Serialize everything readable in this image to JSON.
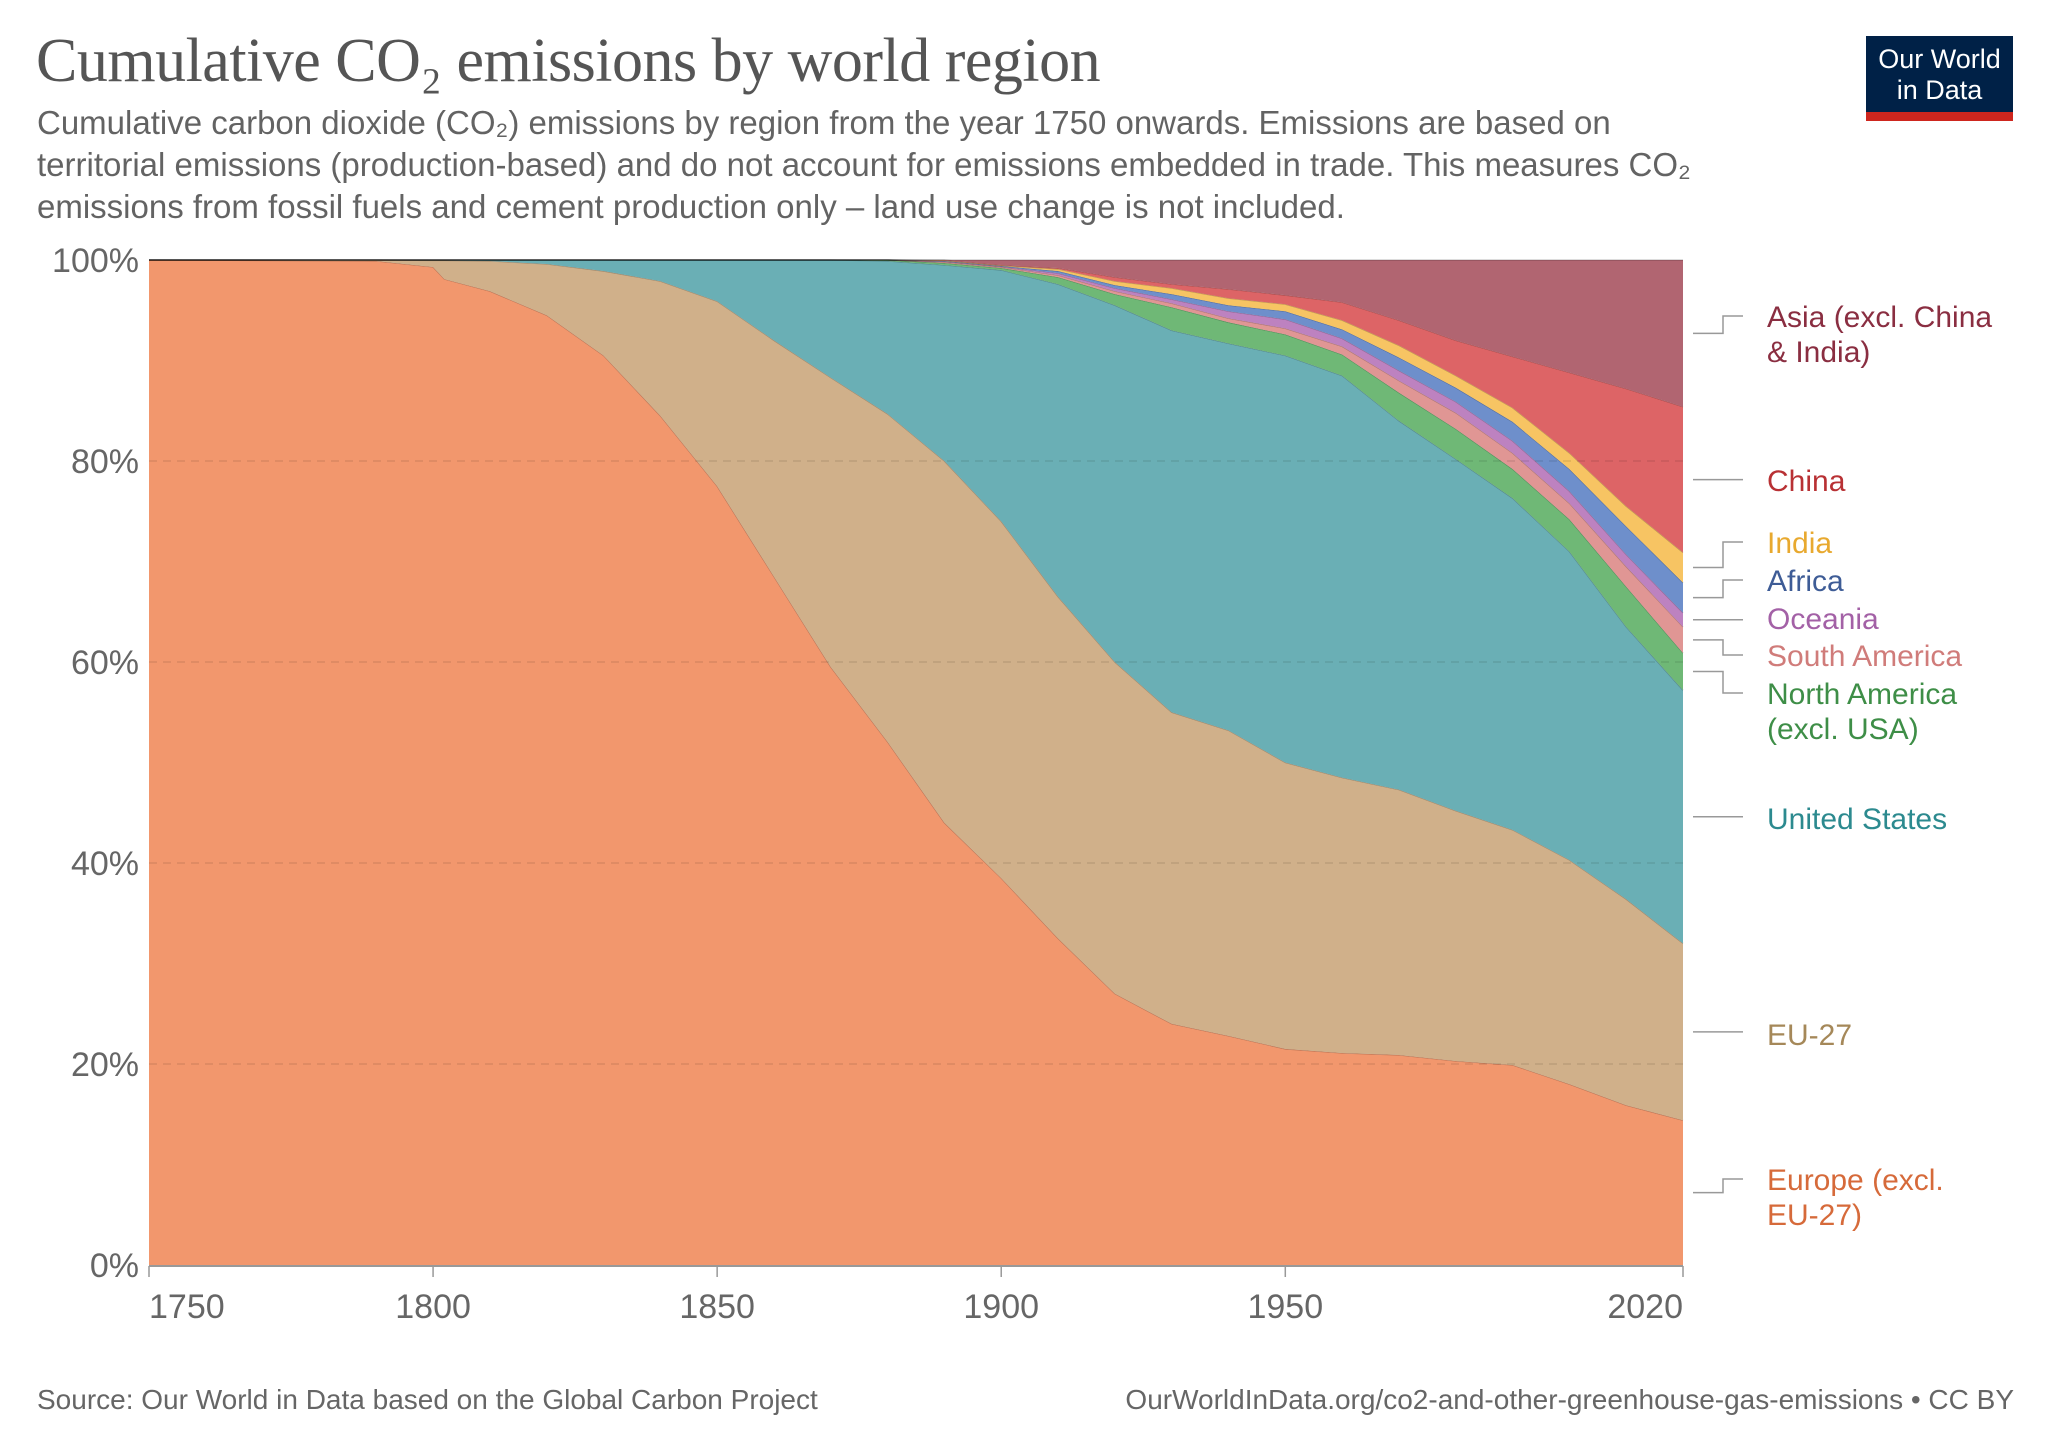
{
  "header": {
    "title": "Cumulative CO₂ emissions by world region",
    "subtitle_lines": [
      "Cumulative carbon dioxide (CO₂) emissions by region from the year 1750 onwards. Emissions are based on",
      "territorial emissions (production-based) and do not account for emissions embedded in trade. This measures CO₂",
      "emissions from fossil fuels and cement production only – land use change is not included."
    ],
    "logo_line1": "Our World",
    "logo_line2": "in Data",
    "logo_bg": "#002147",
    "logo_accent": "#ce261e"
  },
  "footer": {
    "source": "Source: Our World in Data based on the Global Carbon Project",
    "url": "OurWorldInData.org/co2-and-other-greenhouse-gas-emissions • CC BY"
  },
  "chart_data": {
    "type": "area",
    "stacked": true,
    "relative": true,
    "title": "Cumulative CO₂ emissions by world region",
    "xlabel": "",
    "ylabel": "",
    "xlim": [
      1750,
      2020
    ],
    "ylim": [
      0,
      100
    ],
    "grid": "horizontal-dashed",
    "legend_placement": "right (inline labels)",
    "x_ticks": [
      1750,
      1800,
      1850,
      1900,
      1950,
      2020
    ],
    "x_tick_labels": [
      "1750",
      "1800",
      "1850",
      "1900",
      "1950",
      "2020"
    ],
    "y_ticks": [
      0,
      20,
      40,
      60,
      80,
      100
    ],
    "y_tick_labels": [
      "0%",
      "20%",
      "40%",
      "60%",
      "80%",
      "100%"
    ],
    "x": [
      1750,
      1790,
      1800,
      1802,
      1810,
      1820,
      1830,
      1840,
      1850,
      1860,
      1870,
      1880,
      1890,
      1900,
      1910,
      1920,
      1930,
      1940,
      1950,
      1960,
      1970,
      1980,
      1990,
      2000,
      2010,
      2020
    ],
    "series": [
      {
        "name": "Europe (excl. EU-27)",
        "label_lines": [
          "Europe (excl.",
          "EU-27)"
        ],
        "color": "#f2976d",
        "text_color": "#d66a3a",
        "values": [
          100,
          99.9,
          99.3,
          98.1,
          96.9,
          94.5,
          90.5,
          84.5,
          77.5,
          68.5,
          59.5,
          52.0,
          44.0,
          38.5,
          32.5,
          27.0,
          24.0,
          22.8,
          21.5,
          21.1,
          20.9,
          20.3,
          19.9,
          18.0,
          15.9,
          14.4
        ]
      },
      {
        "name": "EU-27",
        "label_lines": [
          "EU-27"
        ],
        "color": "#d0b08a",
        "text_color": "#a58859",
        "values": [
          0,
          0.1,
          0.65,
          1.85,
          3.0,
          5.1,
          8.4,
          13.4,
          18.4,
          23.5,
          28.8,
          32.6,
          36.0,
          35.5,
          34.0,
          33.0,
          31.0,
          30.4,
          28.5,
          27.4,
          26.4,
          24.9,
          23.4,
          22.3,
          20.5,
          17.6
        ]
      },
      {
        "name": "United States",
        "label_lines": [
          "United States"
        ],
        "color": "#6aafb5",
        "text_color": "#2c8a8f",
        "values": [
          0,
          0,
          0.05,
          0.05,
          0.1,
          0.4,
          1.1,
          2.1,
          4.1,
          8.0,
          11.7,
          15.2,
          19.5,
          25.0,
          31.1,
          35.5,
          38.0,
          38.5,
          40.5,
          40.0,
          36.7,
          35.0,
          33.0,
          30.7,
          27.1,
          25.2
        ]
      },
      {
        "name": "North America (excl. USA)",
        "label_lines": [
          "North America",
          "(excl. USA)"
        ],
        "color": "#6fb876",
        "text_color": "#3e8e47",
        "values": [
          0,
          0,
          0,
          0,
          0,
          0,
          0,
          0,
          0,
          0,
          0,
          0.1,
          0.2,
          0.2,
          0.7,
          1.1,
          2.3,
          2.1,
          2.1,
          2.1,
          2.8,
          3.0,
          2.9,
          3.2,
          4.0,
          3.7
        ]
      },
      {
        "name": "South America",
        "label_lines": [
          "South America"
        ],
        "color": "#e09694",
        "text_color": "#d07c7a",
        "values": [
          0,
          0,
          0,
          0,
          0,
          0,
          0,
          0,
          0,
          0,
          0,
          0,
          0.1,
          0.1,
          0.2,
          0.3,
          0.4,
          0.4,
          0.6,
          0.8,
          1.2,
          1.6,
          1.6,
          1.6,
          2.0,
          2.6
        ]
      },
      {
        "name": "Oceania",
        "label_lines": [
          "Oceania"
        ],
        "color": "#bd82c0",
        "text_color": "#a361a6",
        "values": [
          0,
          0,
          0,
          0,
          0,
          0,
          0,
          0,
          0,
          0,
          0,
          0,
          0.05,
          0.05,
          0.2,
          0.3,
          0.4,
          0.7,
          0.9,
          0.8,
          1.0,
          1.1,
          1.2,
          1.2,
          1.2,
          1.4
        ]
      },
      {
        "name": "Africa",
        "label_lines": [
          "Africa"
        ],
        "color": "#6e8fcb",
        "text_color": "#3e5c96",
        "values": [
          0,
          0,
          0,
          0,
          0,
          0,
          0,
          0,
          0,
          0,
          0,
          0,
          0.05,
          0.05,
          0.2,
          0.3,
          0.5,
          0.6,
          0.8,
          0.9,
          1.3,
          1.4,
          1.9,
          2.2,
          2.8,
          3.0
        ]
      },
      {
        "name": "India",
        "label_lines": [
          "India"
        ],
        "color": "#f7c463",
        "text_color": "#e8a92f",
        "values": [
          0,
          0,
          0,
          0,
          0,
          0,
          0,
          0,
          0,
          0,
          0,
          0,
          0.05,
          0.05,
          0.2,
          0.4,
          0.6,
          0.7,
          0.7,
          0.9,
          1.2,
          1.2,
          1.4,
          1.6,
          2.0,
          3.0
        ]
      },
      {
        "name": "China",
        "label_lines": [
          "China"
        ],
        "color": "#dd6466",
        "text_color": "#b83134",
        "values": [
          0,
          0,
          0,
          0,
          0,
          0,
          0,
          0,
          0,
          0,
          0,
          0,
          0.05,
          0.05,
          0.1,
          0.4,
          0.4,
          0.9,
          0.9,
          1.8,
          2.5,
          3.5,
          5.1,
          8.0,
          11.7,
          14.5
        ]
      },
      {
        "name": "Asia (excl. China & India)",
        "label_lines": [
          "Asia (excl. China",
          "& India)"
        ],
        "color": "#b16571",
        "text_color": "#8a2e41",
        "values": [
          0,
          0,
          0,
          0,
          0,
          0,
          0,
          0,
          0,
          0,
          0,
          0,
          0,
          0.5,
          0.8,
          1.7,
          2.4,
          2.9,
          3.5,
          4.2,
          6.0,
          8.0,
          9.6,
          11.2,
          12.8,
          14.6
        ]
      }
    ]
  }
}
